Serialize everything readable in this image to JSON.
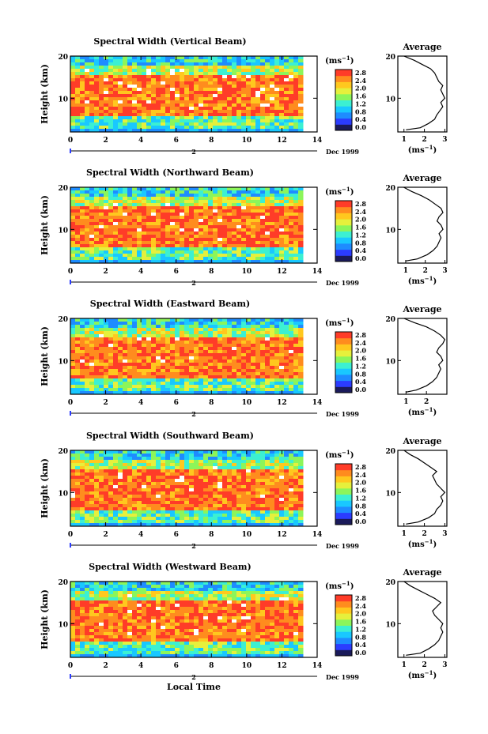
{
  "chart_data": [
    {
      "type": "heatmap",
      "title": "Spectral Width (Vertical Beam)",
      "avg_title": "Average",
      "ylabel": "Height (km)",
      "xlabel": "",
      "units": "(ms",
      "x_ticks": [
        "0",
        "2",
        "4",
        "6",
        "8",
        "10",
        "12",
        "14"
      ],
      "y_ticks": [
        "10",
        "20"
      ],
      "xlim": [
        0,
        14
      ],
      "ylim": [
        2,
        20
      ],
      "colorbar_ticks": [
        "2.8",
        "2.4",
        "2.0",
        "1.6",
        "1.2",
        "0.8",
        "0.4",
        "0.0"
      ],
      "date_tick": "2",
      "date_label": "Dec 1999",
      "avg_xticks": [
        "1",
        "2",
        "3"
      ],
      "avg_xlim": [
        0.7,
        3.1
      ],
      "avg_profile": {
        "h": [
          2.5,
          3,
          4,
          5,
          6,
          7,
          8,
          9,
          10,
          11,
          12,
          13,
          14,
          15,
          16,
          17,
          18,
          19,
          20
        ],
        "v": [
          1.1,
          1.8,
          2.2,
          2.5,
          2.6,
          2.75,
          2.9,
          2.8,
          3.0,
          2.9,
          2.8,
          2.9,
          2.7,
          2.6,
          2.5,
          2.3,
          1.9,
          1.5,
          1.0
        ]
      }
    },
    {
      "type": "heatmap",
      "title": "Spectral Width (Northward Beam)",
      "avg_title": "Average",
      "ylabel": "Height (km)",
      "xlabel": "",
      "units": "(ms",
      "x_ticks": [
        "0",
        "2",
        "4",
        "6",
        "8",
        "10",
        "12",
        "14"
      ],
      "y_ticks": [
        "10",
        "20"
      ],
      "xlim": [
        0,
        14
      ],
      "ylim": [
        2,
        20
      ],
      "colorbar_ticks": [
        "2.8",
        "2.4",
        "2.0",
        "1.6",
        "1.2",
        "0.8",
        "0.4",
        "0.0"
      ],
      "date_tick": "2",
      "date_label": "Dec 1999",
      "avg_xticks": [
        "1",
        "2",
        "3"
      ],
      "avg_xlim": [
        0.6,
        3.1
      ],
      "avg_profile": {
        "h": [
          2.5,
          3,
          4,
          5,
          6,
          7,
          8,
          9,
          10,
          11,
          12,
          13,
          14,
          15,
          16,
          17,
          18,
          19,
          20
        ],
        "v": [
          1.0,
          1.6,
          2.1,
          2.4,
          2.6,
          2.7,
          2.8,
          2.7,
          2.9,
          2.8,
          2.6,
          2.7,
          2.9,
          2.8,
          2.5,
          2.2,
          1.8,
          1.3,
          0.9
        ]
      }
    },
    {
      "type": "heatmap",
      "title": "Spectral Width (Eastward Beam)",
      "avg_title": "Average",
      "ylabel": "Height (km)",
      "xlabel": "",
      "units": "(ms",
      "x_ticks": [
        "0",
        "2",
        "4",
        "6",
        "8",
        "10",
        "12",
        "14"
      ],
      "y_ticks": [
        "10",
        "20"
      ],
      "xlim": [
        0,
        14
      ],
      "ylim": [
        2,
        20
      ],
      "colorbar_ticks": [
        "2.8",
        "2.4",
        "2.0",
        "1.6",
        "1.2",
        "0.8",
        "0.4",
        "0.0"
      ],
      "date_tick": "2",
      "date_label": "Dec 1999",
      "avg_xticks": [
        "1",
        "2"
      ],
      "avg_xlim": [
        0.6,
        3.0
      ],
      "avg_profile": {
        "h": [
          2.5,
          3,
          4,
          5,
          6,
          7,
          8,
          9,
          10,
          11,
          12,
          13,
          14,
          15,
          16,
          17,
          18,
          19,
          20
        ],
        "v": [
          1.0,
          1.5,
          2.0,
          2.3,
          2.5,
          2.6,
          2.7,
          2.6,
          2.8,
          2.7,
          2.5,
          2.6,
          2.8,
          2.9,
          2.7,
          2.4,
          2.0,
          1.4,
          0.9
        ]
      }
    },
    {
      "type": "heatmap",
      "title": "Spectral Width (Southward Beam)",
      "avg_title": "Average",
      "ylabel": "Height (km)",
      "xlabel": "",
      "units": "(ms",
      "x_ticks": [
        "0",
        "2",
        "4",
        "6",
        "8",
        "10",
        "12",
        "14"
      ],
      "y_ticks": [
        "10",
        "20"
      ],
      "xlim": [
        0,
        14
      ],
      "ylim": [
        2,
        20
      ],
      "colorbar_ticks": [
        "2.8",
        "2.4",
        "2.0",
        "1.6",
        "1.2",
        "0.8",
        "0.4",
        "0.0"
      ],
      "date_tick": "2",
      "date_label": "Dec 1999",
      "avg_xticks": [
        "1",
        "2",
        "3"
      ],
      "avg_xlim": [
        0.7,
        3.1
      ],
      "avg_profile": {
        "h": [
          2.5,
          3,
          4,
          5,
          6,
          7,
          8,
          9,
          10,
          11,
          12,
          13,
          14,
          15,
          16,
          17,
          18,
          19,
          20
        ],
        "v": [
          1.1,
          1.7,
          2.2,
          2.5,
          2.6,
          2.8,
          2.9,
          2.8,
          3.0,
          2.8,
          2.6,
          2.5,
          2.4,
          2.6,
          2.3,
          2.0,
          1.7,
          1.3,
          1.0
        ]
      }
    },
    {
      "type": "heatmap",
      "title": "Spectral Width (Westward Beam)",
      "avg_title": "Average",
      "ylabel": "Height (km)",
      "xlabel": "Local Time",
      "units": "(ms",
      "x_ticks": [
        "0",
        "2",
        "4",
        "6",
        "8",
        "10",
        "12",
        "14"
      ],
      "y_ticks": [
        "10",
        "20"
      ],
      "xlim": [
        0,
        14
      ],
      "ylim": [
        2,
        20
      ],
      "colorbar_ticks": [
        "2.8",
        "2.4",
        "2.0",
        "1.6",
        "1.2",
        "0.8",
        "0.4",
        "0.0"
      ],
      "date_tick": "2",
      "date_label": "Dec 1999",
      "avg_xticks": [
        "1",
        "2",
        "3"
      ],
      "avg_xlim": [
        0.7,
        3.1
      ],
      "avg_profile": {
        "h": [
          2.5,
          3,
          4,
          5,
          6,
          7,
          8,
          9,
          10,
          11,
          12,
          13,
          14,
          15,
          16,
          17,
          18,
          19,
          20
        ],
        "v": [
          1.1,
          1.8,
          2.2,
          2.5,
          2.7,
          2.8,
          2.9,
          2.8,
          2.9,
          2.7,
          2.5,
          2.4,
          2.6,
          2.8,
          2.5,
          2.1,
          1.7,
          1.3,
          1.0
        ]
      }
    }
  ],
  "colors": {
    "scale": [
      "#1a1a5a",
      "#2b3cff",
      "#1e8cff",
      "#19c8ff",
      "#3cf0d2",
      "#8cf55a",
      "#e6f03c",
      "#ffc81e",
      "#ff8c1e",
      "#ff3c28"
    ]
  }
}
